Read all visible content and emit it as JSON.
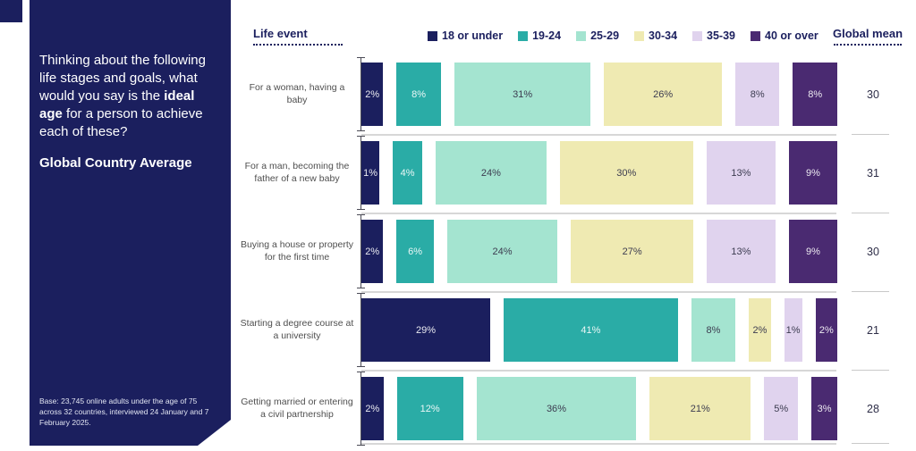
{
  "sidebar": {
    "question_prefix": "Thinking about the following life stages and goals, what would you say is the ",
    "question_bold": "ideal age",
    "question_suffix": " for a person to achieve each of these?",
    "subtitle": "Global Country Average",
    "base_note": "Base: 23,745 online adults under the age of 75 across 32 countries, interviewed 24 January and 7 February 2025."
  },
  "header": {
    "left_column": "Life event",
    "right_column": "Global mean"
  },
  "chart_data": {
    "type": "bar",
    "orientation": "horizontal-stacked",
    "unit": "%",
    "legend_position": "top",
    "categories": [
      "For a woman, having a baby",
      "For a man, becoming the father of a new baby",
      "Buying a house or property for the first time",
      "Starting a degree course at a university",
      "Getting married or entering a civil partnership"
    ],
    "series": [
      {
        "name": "18 or under",
        "color": "#1b1f5e",
        "text": "light",
        "values": [
          2,
          1,
          2,
          29,
          2
        ]
      },
      {
        "name": "19-24",
        "color": "#2aaca6",
        "text": "light",
        "values": [
          8,
          4,
          6,
          41,
          12
        ]
      },
      {
        "name": "25-29",
        "color": "#a4e4d0",
        "text": "dark",
        "values": [
          31,
          24,
          24,
          8,
          36
        ]
      },
      {
        "name": "30-34",
        "color": "#efeab2",
        "text": "dark",
        "values": [
          26,
          30,
          27,
          2,
          21
        ]
      },
      {
        "name": "35-39",
        "color": "#e0d3ee",
        "text": "dark",
        "values": [
          8,
          13,
          13,
          1,
          5
        ]
      },
      {
        "name": "40 or over",
        "color": "#4a2a71",
        "text": "light",
        "values": [
          8,
          9,
          9,
          2,
          3
        ]
      }
    ],
    "global_means": [
      30,
      31,
      30,
      21,
      28
    ]
  },
  "colors": {
    "panel_navy": "#1b1f5e",
    "separator_gray": "#d7d7d7",
    "axis": "#4a4a55"
  }
}
